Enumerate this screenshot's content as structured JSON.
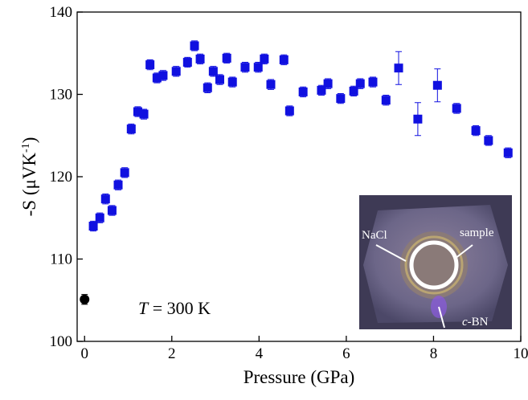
{
  "chart_data": {
    "type": "scatter",
    "xlabel": "Pressure (GPa)",
    "ylabel": {
      "text": "-S (μVK",
      "sup": "-1",
      "end": ")"
    },
    "annotation": {
      "italic": "T",
      "text": " = 300 K"
    },
    "inset_labels": {
      "nacl": "NaCl",
      "sample": "sample",
      "cbn_italic": "c",
      "cbn": "-BN"
    },
    "xlim": [
      -0.17,
      10
    ],
    "ylim": [
      100,
      140
    ],
    "xticks": [
      0,
      2,
      4,
      6,
      8,
      10
    ],
    "yticks": [
      100,
      110,
      120,
      130,
      140
    ],
    "series": [
      {
        "marker": "circle",
        "color": "#000000",
        "x": [
          0
        ],
        "values": [
          105.1
        ],
        "errors": [
          0.6
        ]
      },
      {
        "marker": "square",
        "color": "#1010e0",
        "x": [
          0.2,
          0.35,
          0.48,
          0.63,
          0.77,
          0.92,
          1.07,
          1.22,
          1.36,
          1.5,
          1.66,
          1.8,
          2.1,
          2.36,
          2.52,
          2.65,
          2.82,
          2.95,
          3.1,
          3.26,
          3.39,
          3.68,
          3.98,
          4.12,
          4.27,
          4.57,
          4.7,
          5.01,
          5.43,
          5.58,
          5.87,
          6.17,
          6.32,
          6.61,
          6.91,
          7.2,
          7.64,
          8.09,
          8.53,
          8.97,
          9.26,
          9.71
        ],
        "values": [
          114.0,
          115.0,
          117.3,
          115.9,
          119.0,
          120.5,
          125.8,
          127.9,
          127.6,
          133.6,
          132.0,
          132.3,
          132.8,
          133.9,
          135.9,
          134.3,
          130.8,
          132.8,
          131.8,
          134.4,
          131.5,
          133.3,
          133.3,
          134.3,
          131.2,
          134.2,
          128.0,
          130.3,
          130.5,
          131.3,
          129.5,
          130.4,
          131.3,
          131.5,
          129.3,
          133.2,
          127.0,
          131.1,
          128.3,
          125.6,
          124.4,
          122.9
        ],
        "errors": [
          0.6,
          0.6,
          0.6,
          0.6,
          0.6,
          0.6,
          0.6,
          0.6,
          0.6,
          0.6,
          0.6,
          0.6,
          0.6,
          0.6,
          0.6,
          0.6,
          0.6,
          0.6,
          0.6,
          0.6,
          0.6,
          0.6,
          0.6,
          0.6,
          0.6,
          0.6,
          0.6,
          0.6,
          0.6,
          0.6,
          0.6,
          0.6,
          0.6,
          0.6,
          0.6,
          2.0,
          2.0,
          2.0,
          0.6,
          0.6,
          0.6,
          0.6
        ]
      }
    ]
  }
}
